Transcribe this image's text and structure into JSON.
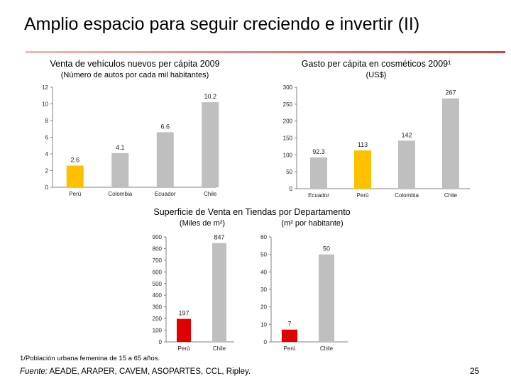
{
  "slide": {
    "title": "Amplio espacio para seguir creciendo e invertir (II)",
    "footnote": "1/Población urbana femenina de 15 a 65 años.",
    "source_label": "Fuente:",
    "source_text": " AEADE, ARAPER, CAVEM, ASOPARTES, CCL, Ripley.",
    "page_number": "25"
  },
  "colors": {
    "highlight_yellow": "#FFC000",
    "highlight_red": "#E00000",
    "bar_gray": "#BFBFBF",
    "axis": "#808080"
  },
  "chart_data": [
    {
      "type": "bar",
      "title": "Venta de vehículos nuevos per cápita 2009",
      "subtitle": "(Número de autos por cada mil habitantes)",
      "categories": [
        "Perú",
        "Colombia",
        "Ecuador",
        "Chile"
      ],
      "values": [
        2.6,
        4.1,
        6.6,
        10.2
      ],
      "labels": [
        "2.6",
        "4.1",
        "6.6",
        "10.2"
      ],
      "highlight_index": 0,
      "highlight_color": "#FFC000",
      "ylim": [
        0,
        12
      ],
      "yticks": [
        0,
        2,
        4,
        6,
        8,
        10,
        12
      ],
      "xlabel": "",
      "ylabel": "",
      "grid": false
    },
    {
      "type": "bar",
      "title": "Gasto per cápita en cosméticos 2009¹",
      "subtitle": "(US$)",
      "categories": [
        "Ecuador",
        "Perú",
        "Colombia",
        "Chile"
      ],
      "values": [
        92.3,
        113,
        142,
        267
      ],
      "labels": [
        "92.3",
        "113",
        "142",
        "267"
      ],
      "highlight_index": 1,
      "highlight_color": "#FFC000",
      "ylim": [
        0,
        300
      ],
      "yticks": [
        0,
        50,
        100,
        150,
        200,
        250,
        300
      ],
      "xlabel": "",
      "ylabel": "",
      "grid": false
    },
    {
      "type": "bar",
      "title": "Superficie de Venta en Tiendas por Departamento",
      "subtitle": "(Miles de m²)",
      "categories": [
        "Perú",
        "Chile"
      ],
      "values": [
        197,
        847
      ],
      "labels": [
        "197",
        "847"
      ],
      "highlight_index": 0,
      "highlight_color": "#E00000",
      "ylim": [
        0,
        900
      ],
      "yticks": [
        0,
        100,
        200,
        300,
        400,
        500,
        600,
        700,
        800,
        900
      ],
      "xlabel": "",
      "ylabel": "",
      "grid": false
    },
    {
      "type": "bar",
      "title": "",
      "subtitle": "(m² por habitante)",
      "categories": [
        "Perú",
        "Chile"
      ],
      "values": [
        7,
        50
      ],
      "labels": [
        "7",
        "50"
      ],
      "highlight_index": 0,
      "highlight_color": "#E00000",
      "ylim": [
        0,
        60
      ],
      "yticks": [
        0,
        10,
        20,
        30,
        40,
        50,
        60
      ],
      "xlabel": "",
      "ylabel": "",
      "grid": false
    }
  ]
}
